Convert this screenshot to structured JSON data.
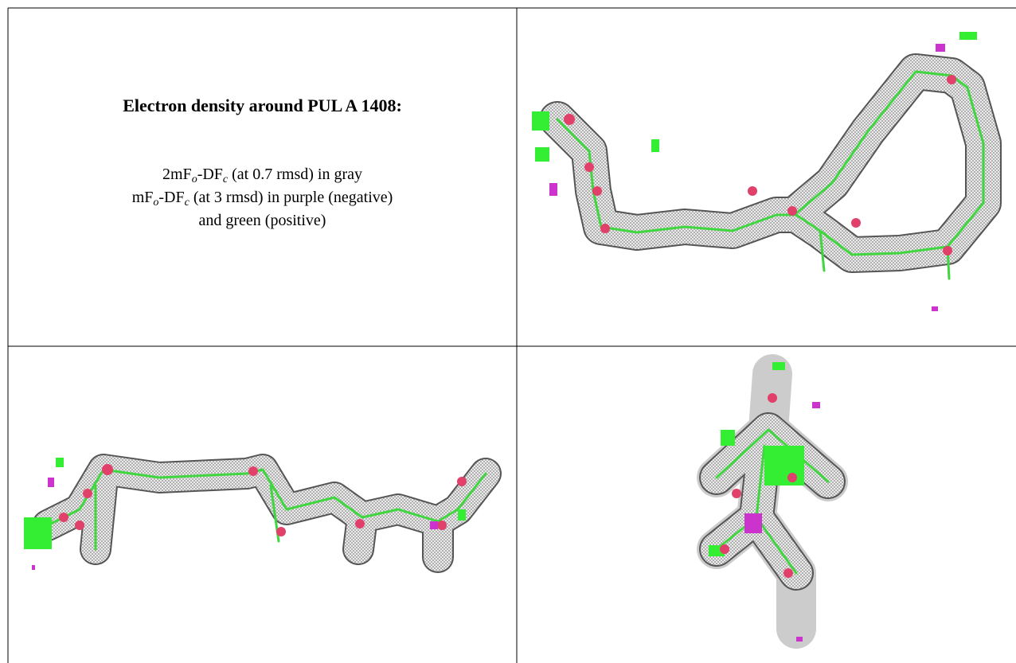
{
  "title": "Electron density around PUL A 1408:",
  "legend": {
    "line1": [
      "2mF",
      "o",
      "-DF",
      "c",
      " (at 0.7 rmsd) in gray"
    ],
    "line2": [
      "mF",
      "o",
      "-DF",
      "c",
      " (at 3 rmsd) in purple (negative)"
    ],
    "line3": [
      "and green (positive)"
    ]
  }
}
